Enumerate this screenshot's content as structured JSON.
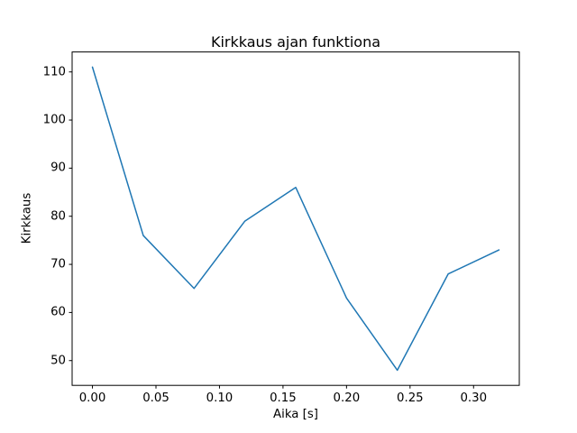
{
  "figure": {
    "background_color": "#ffffff",
    "axis_color": "#000000",
    "line_color": "#1f77b4"
  },
  "chart_data": {
    "type": "line",
    "title": "Kirkkaus ajan funktiona",
    "xlabel": "Aika [s]",
    "ylabel": "Kirkkaus",
    "x": [
      0.0,
      0.04,
      0.08,
      0.12,
      0.16,
      0.2,
      0.24,
      0.28,
      0.32
    ],
    "y": [
      111,
      76,
      65,
      79,
      86,
      63,
      48,
      68,
      73
    ],
    "series": [
      {
        "name": "Kirkkaus",
        "values": [
          111,
          76,
          65,
          79,
          86,
          63,
          48,
          68,
          73
        ]
      }
    ],
    "xticks": [
      0.0,
      0.05,
      0.1,
      0.15,
      0.2,
      0.25,
      0.3
    ],
    "xtick_labels": [
      "0.00",
      "0.05",
      "0.10",
      "0.15",
      "0.20",
      "0.25",
      "0.30"
    ],
    "yticks": [
      50,
      60,
      70,
      80,
      90,
      100,
      110
    ],
    "ytick_labels": [
      "50",
      "60",
      "70",
      "80",
      "90",
      "100",
      "110"
    ],
    "xlim": [
      -0.016,
      0.336
    ],
    "ylim": [
      44.85,
      114.15
    ],
    "grid": false,
    "legend": null,
    "marker": "none"
  }
}
